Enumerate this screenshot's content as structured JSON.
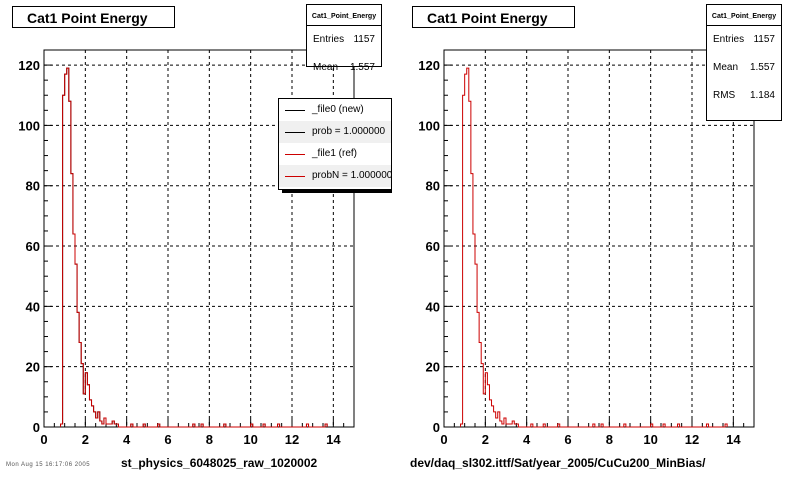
{
  "chart_data": [
    {
      "type": "histogram",
      "title": "Cat1 Point Energy",
      "xlabel": "st_physics_6048025_raw_1020002",
      "xlim": [
        0,
        15
      ],
      "ylim": [
        0,
        125
      ],
      "xticks": [
        0,
        2,
        4,
        6,
        8,
        10,
        12,
        14
      ],
      "yticks": [
        0,
        20,
        40,
        60,
        80,
        100,
        120
      ],
      "grid": true,
      "bin_width": 0.1,
      "x_start": 0.8,
      "series": [
        {
          "name": "_file0 (new)",
          "color": "#000000",
          "values": [
            1,
            110,
            117,
            119,
            108,
            84,
            64,
            54,
            38,
            28,
            21,
            11,
            18,
            14,
            9,
            7,
            5,
            3,
            5,
            2,
            1,
            3,
            1,
            1,
            1,
            2,
            1,
            1,
            0,
            0,
            0,
            0,
            0,
            0,
            1,
            0,
            0,
            0,
            0,
            0,
            1,
            0,
            0,
            0,
            0,
            0,
            0,
            1,
            0,
            0,
            0,
            0,
            0,
            0,
            0,
            0,
            0,
            0,
            0,
            0,
            0,
            0,
            0,
            0,
            1,
            0,
            0,
            0,
            1,
            0,
            0,
            0,
            0,
            0,
            0,
            0,
            0,
            0,
            0,
            1,
            0,
            0,
            0,
            0,
            0,
            0,
            0,
            0,
            0,
            0,
            0,
            0,
            1,
            0,
            0,
            0,
            0,
            0,
            1,
            0,
            0,
            0,
            0,
            0,
            0,
            1,
            0,
            0,
            0,
            0,
            0,
            0,
            0,
            0,
            0,
            0,
            0,
            0,
            0,
            1,
            0,
            0,
            0,
            0,
            0,
            0,
            0,
            0,
            1
          ]
        },
        {
          "name": "_file1 (ref)",
          "color": "#cc0000",
          "values": [
            1,
            110,
            117,
            119,
            108,
            84,
            64,
            54,
            38,
            28,
            21,
            11,
            18,
            14,
            9,
            7,
            5,
            3,
            5,
            2,
            1,
            3,
            1,
            1,
            1,
            2,
            1,
            1,
            0,
            0,
            0,
            0,
            0,
            0,
            1,
            0,
            0,
            0,
            0,
            0,
            1,
            0,
            0,
            0,
            0,
            0,
            0,
            1,
            0,
            0,
            0,
            0,
            0,
            0,
            0,
            0,
            0,
            0,
            0,
            0,
            0,
            0,
            0,
            0,
            1,
            0,
            0,
            0,
            1,
            0,
            0,
            0,
            0,
            0,
            0,
            0,
            0,
            0,
            0,
            1,
            0,
            0,
            0,
            0,
            0,
            0,
            0,
            0,
            0,
            0,
            0,
            0,
            1,
            0,
            0,
            0,
            0,
            0,
            1,
            0,
            0,
            0,
            0,
            0,
            0,
            1,
            0,
            0,
            0,
            0,
            0,
            0,
            0,
            0,
            0,
            0,
            0,
            0,
            0,
            1,
            0,
            0,
            0,
            0,
            0,
            0,
            0,
            0,
            1
          ]
        }
      ],
      "stats": {
        "title": "Cat1_Point_Energy",
        "rows": [
          {
            "label": "Entries",
            "value": "1157"
          },
          {
            "label": "Mean",
            "value": "1.557"
          }
        ]
      },
      "legend": [
        {
          "text": "_file0 (new)",
          "color": "#000000"
        },
        {
          "text": "prob = 1.000000",
          "color": "#000000"
        },
        {
          "text": "_file1 (ref)",
          "color": "#cc0000"
        },
        {
          "text": "probN = 1.000000",
          "color": "#cc0000"
        }
      ]
    },
    {
      "type": "histogram",
      "title": "Cat1 Point Energy",
      "xlabel": "dev/daq_sl302.ittf/Sat/year_2005/CuCu200_MinBias/",
      "xlim": [
        0,
        15
      ],
      "ylim": [
        0,
        125
      ],
      "xticks": [
        0,
        2,
        4,
        6,
        8,
        10,
        12,
        14
      ],
      "yticks": [
        0,
        20,
        40,
        60,
        80,
        100,
        120
      ],
      "grid": true,
      "bin_width": 0.1,
      "x_start": 0.8,
      "series": [
        {
          "name": "",
          "color": "#cc0000",
          "values": [
            1,
            110,
            117,
            119,
            108,
            84,
            64,
            54,
            38,
            28,
            21,
            11,
            18,
            14,
            9,
            7,
            5,
            3,
            5,
            2,
            1,
            3,
            1,
            1,
            1,
            2,
            1,
            1,
            0,
            0,
            0,
            0,
            0,
            0,
            1,
            0,
            0,
            0,
            0,
            0,
            1,
            0,
            0,
            0,
            0,
            0,
            0,
            1,
            0,
            0,
            0,
            0,
            0,
            0,
            0,
            0,
            0,
            0,
            0,
            0,
            0,
            0,
            0,
            0,
            1,
            0,
            0,
            0,
            1,
            0,
            0,
            0,
            0,
            0,
            0,
            0,
            0,
            0,
            0,
            1,
            0,
            0,
            0,
            0,
            0,
            0,
            0,
            0,
            0,
            0,
            0,
            0,
            1,
            0,
            0,
            0,
            0,
            0,
            1,
            0,
            0,
            0,
            0,
            0,
            0,
            1,
            0,
            0,
            0,
            0,
            0,
            0,
            0,
            0,
            0,
            0,
            0,
            0,
            0,
            1,
            0,
            0,
            0,
            0,
            0,
            0,
            0,
            0,
            1
          ]
        }
      ],
      "stats": {
        "title": "Cat1_Point_Energy",
        "rows": [
          {
            "label": "Entries",
            "value": "1157"
          },
          {
            "label": "Mean",
            "value": "1.557"
          },
          {
            "label": "RMS",
            "value": "1.184"
          }
        ]
      }
    }
  ],
  "footer": {
    "corner_text": "Mon Aug 15 16:17:06 2005"
  }
}
